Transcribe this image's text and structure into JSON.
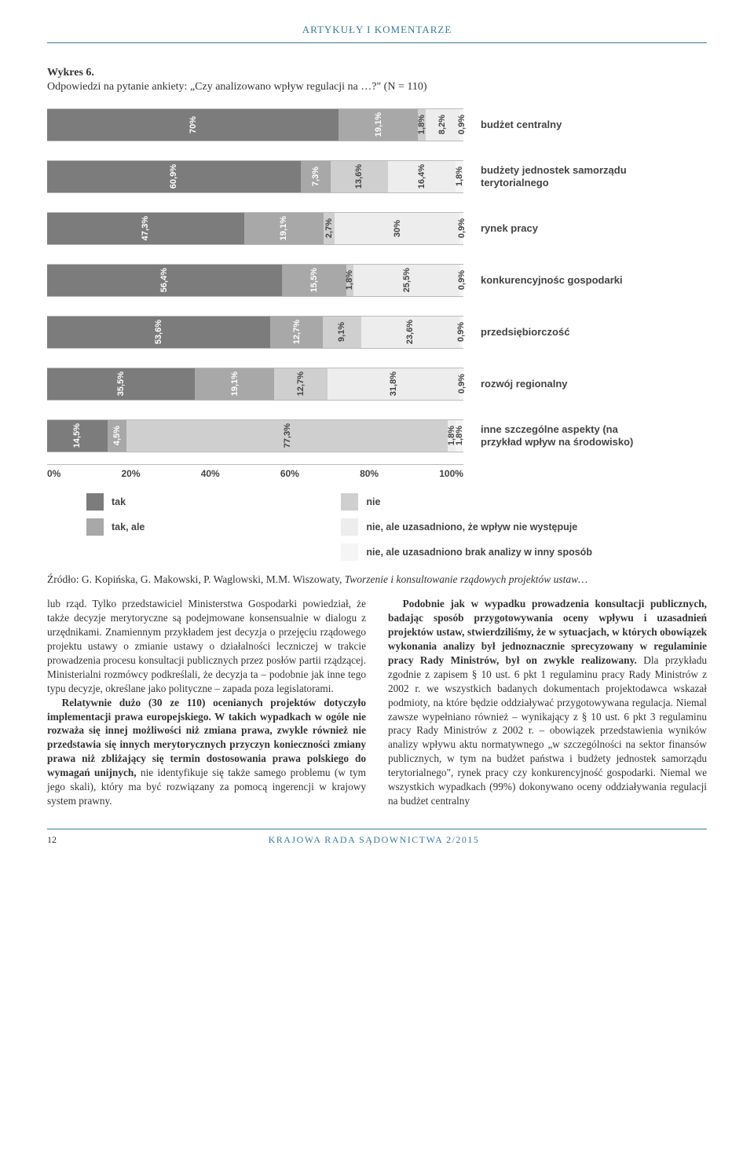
{
  "header": {
    "section": "ARTYKUŁY I KOMENTARZE"
  },
  "chart": {
    "title": "Wykres 6.",
    "subtitle": "Odpowiedzi na pytanie ankiety: „Czy analizowano wpływ regulacji na …?\" (N = 110)",
    "colors": {
      "seg1": "#7c7c7c",
      "seg2": "#a8a8a8",
      "seg3": "#cfcfcf",
      "seg4": "#ededed",
      "seg5": "#c8c8c8",
      "seg6": "#f5f5f5"
    },
    "categories": [
      {
        "label": "budżet centralny",
        "values": [
          "70%",
          "19,1%",
          "1,8%",
          "8,2%",
          "",
          "0,9%"
        ],
        "widths": [
          70,
          19.1,
          1.8,
          8.2,
          0,
          0.9
        ]
      },
      {
        "label": "budżety jednostek samorządu terytorialnego",
        "values": [
          "60,9%",
          "7,3%",
          "13,6%",
          "16,4%",
          "",
          "1,8%"
        ],
        "widths": [
          60.9,
          7.3,
          13.6,
          16.4,
          0,
          1.8
        ]
      },
      {
        "label": "rynek pracy",
        "values": [
          "47,3%",
          "19,1%",
          "2,7%",
          "30%",
          "",
          "0,9%"
        ],
        "widths": [
          47.3,
          19.1,
          2.7,
          30,
          0,
          0.9
        ]
      },
      {
        "label": "konkurencyjnośc gospodarki",
        "values": [
          "56,4%",
          "15,5%",
          "1,8%",
          "25,5%",
          "",
          "0,9%"
        ],
        "widths": [
          56.4,
          15.5,
          1.8,
          25.5,
          0,
          0.9
        ]
      },
      {
        "label": "przedsiębiorczość",
        "values": [
          "53,6%",
          "12,7%",
          "9,1%",
          "23,6%",
          "",
          "0,9%"
        ],
        "widths": [
          53.6,
          12.7,
          9.1,
          23.6,
          0,
          0.9
        ]
      },
      {
        "label": "rozwój regionalny",
        "values": [
          "35,5%",
          "19,1%",
          "12,7%",
          "31,8%",
          "",
          "0,9%"
        ],
        "widths": [
          35.5,
          19.1,
          12.7,
          31.8,
          0,
          0.9
        ]
      },
      {
        "label": "inne szczególne aspekty (na przykład wpływ na środowisko)",
        "values": [
          "14,5%",
          "4,5%",
          "77,3%",
          "1,8%",
          "",
          "1,8%"
        ],
        "widths": [
          14.5,
          4.5,
          77.3,
          1.8,
          0,
          1.8
        ]
      }
    ],
    "xaxis": [
      "0%",
      "20%",
      "40%",
      "60%",
      "80%",
      "100%"
    ],
    "legend": {
      "left": [
        {
          "color": "#7c7c7c",
          "label": "tak"
        },
        {
          "color": "#a8a8a8",
          "label": "tak, ale"
        }
      ],
      "right": [
        {
          "color": "#cfcfcf",
          "label": "nie"
        },
        {
          "color": "#ededed",
          "label": "nie, ale uzasadniono, że wpływ nie występuje"
        },
        {
          "color": "#f5f5f5",
          "label": "nie, ale uzasadniono brak analizy w inny sposób"
        }
      ]
    }
  },
  "source": {
    "prefix": "Źródło: G. Kopińska, G. Makowski, P. Waglowski, M.M. Wiszowaty, ",
    "italic": "Tworzenie i konsultowanie rządowych projektów ustaw…"
  },
  "body": {
    "p1a": "lub rząd. Tylko przedstawiciel Ministerstwa Gospodarki powiedział, że także decyzje merytoryczne są podejmowane konsensualnie w dialogu z urzędnikami. Znamiennym przykładem jest decyzja o przejęciu rządowego projektu ustawy o zmianie ustawy o działalności leczniczej w trakcie prowadzenia procesu konsultacji publicznych przez posłów partii rządzącej. Ministerialni rozmówcy podkreślali, że decyzja ta – podobnie jak inne tego typu decyzje, określane jako polityczne – zapada poza legislatorami.",
    "p2b1": "Relatywnie dużo (30 ze 110) ocenianych projektów dotyczyło implementacji prawa europejskiego. W takich wypadkach w ogóle nie rozważa się innej możliwości niż zmiana prawa, zwykle również nie przedstawia się innych merytorycznych przyczyn konieczności zmiany prawa niż zbliżający się termin dostosowania prawa polskiego do wymagań unijnych, ",
    "p2b2": "nie identyfikuje się także samego problemu (w tym jego skali), który ma być rozwiązany za pomocą ingerencji w krajowy system prawny.",
    "p3b1": "Podobnie jak w wypadku prowadzenia konsultacji publicznych, badając sposób przygotowywania oceny wpływu i uzasadnień projektów ustaw, stwierdziliśmy, że w sytuacjach, w których obowiązek wykonania analizy był jednoznacznie sprecyzowany w regulaminie pracy Rady Ministrów, był on zwykle realizowany. ",
    "p3b2": "Dla przykładu zgodnie z zapisem § 10 ust. 6 pkt 1 regulaminu pracy Rady Ministrów z 2002 r. we wszystkich badanych dokumentach projektodawca wskazał podmioty, na które będzie oddziaływać przygotowywana regulacja. Niemal zawsze wypełniano również – wynikający z § 10 ust. 6 pkt 3 regulaminu pracy Rady Ministrów z 2002 r. – obowiązek przedstawienia wyników analizy wpływu aktu normatywnego „w szczególności na sektor finansów publicznych, w tym na budżet państwa i budżety jednostek samorządu terytorialnego\", rynek pracy czy konkurencyjność gospodarki. Niemal we wszystkich wypadkach (99%) dokonywano oceny oddziaływania regulacji na budżet centralny"
  },
  "footer": {
    "page": "12",
    "journal": "KRAJOWA RADA SĄDOWNICTWA 2/2015"
  }
}
